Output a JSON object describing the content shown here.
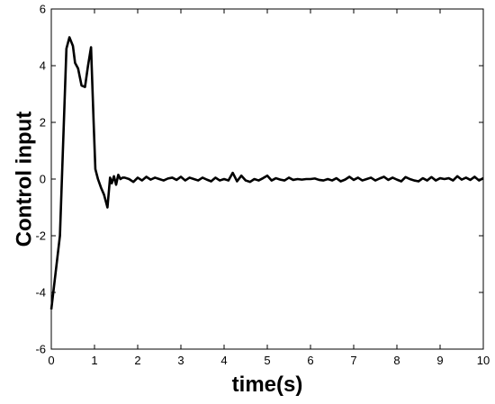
{
  "chart_data": {
    "type": "line",
    "title": "",
    "xlabel": "time(s)",
    "ylabel": "Control input",
    "xlim": [
      0,
      10
    ],
    "ylim": [
      -6,
      6
    ],
    "xticks": [
      0,
      1,
      2,
      3,
      4,
      5,
      6,
      7,
      8,
      9,
      10
    ],
    "yticks": [
      -6,
      -4,
      -2,
      0,
      2,
      4,
      6
    ],
    "xtick_labels": [
      "0",
      "1",
      "2",
      "3",
      "4",
      "5",
      "6",
      "7",
      "8",
      "9",
      "10"
    ],
    "ytick_labels": [
      "-6",
      "-4",
      "-2",
      "0",
      "2",
      "4",
      "6"
    ],
    "grid": false,
    "series": [
      {
        "color": "#000000",
        "x": [
          0,
          0.2,
          0.35,
          0.42,
          0.5,
          0.55,
          0.62,
          0.7,
          0.78,
          0.85,
          0.92,
          0.98,
          1.02,
          1.08,
          1.15,
          1.22,
          1.3,
          1.36,
          1.4,
          1.45,
          1.5,
          1.55,
          1.6,
          1.65,
          1.7,
          1.8,
          1.9,
          2.0,
          2.1,
          2.2,
          2.3,
          2.4,
          2.5,
          2.6,
          2.7,
          2.8,
          2.9,
          3.0,
          3.1,
          3.2,
          3.3,
          3.4,
          3.5,
          3.6,
          3.7,
          3.8,
          3.9,
          4.0,
          4.1,
          4.2,
          4.3,
          4.4,
          4.5,
          4.6,
          4.7,
          4.8,
          4.9,
          5.0,
          5.1,
          5.2,
          5.3,
          5.4,
          5.5,
          5.6,
          5.7,
          5.8,
          5.9,
          6.0,
          6.1,
          6.2,
          6.3,
          6.4,
          6.5,
          6.6,
          6.7,
          6.8,
          6.9,
          7.0,
          7.1,
          7.2,
          7.3,
          7.4,
          7.5,
          7.6,
          7.7,
          7.8,
          7.9,
          8.0,
          8.1,
          8.2,
          8.3,
          8.4,
          8.5,
          8.6,
          8.7,
          8.8,
          8.9,
          9.0,
          9.1,
          9.2,
          9.3,
          9.4,
          9.5,
          9.6,
          9.7,
          9.8,
          9.9,
          10.0
        ],
        "y": [
          -4.6,
          -2.0,
          4.6,
          5.0,
          4.7,
          4.1,
          3.9,
          3.3,
          3.25,
          4.0,
          4.65,
          2.0,
          0.35,
          0.0,
          -0.3,
          -0.55,
          -1.0,
          0.05,
          -0.15,
          0.1,
          -0.2,
          0.15,
          0.0,
          0.05,
          0.05,
          0.0,
          -0.1,
          0.05,
          -0.05,
          0.08,
          -0.02,
          0.05,
          0.0,
          -0.05,
          0.02,
          0.05,
          -0.03,
          0.08,
          -0.05,
          0.05,
          0.0,
          -0.05,
          0.05,
          -0.02,
          -0.08,
          0.05,
          -0.05,
          0.0,
          -0.05,
          0.22,
          -0.08,
          0.12,
          -0.05,
          -0.1,
          0.0,
          -0.05,
          0.03,
          0.12,
          -0.05,
          0.03,
          -0.02,
          -0.05,
          0.05,
          -0.03,
          0.0,
          -0.02,
          0.0,
          0.0,
          0.02,
          -0.03,
          -0.05,
          0.0,
          -0.05,
          0.03,
          -0.08,
          -0.02,
          0.08,
          -0.03,
          0.05,
          -0.05,
          0.0,
          0.05,
          -0.05,
          0.02,
          0.08,
          -0.03,
          0.05,
          -0.02,
          -0.08,
          0.07,
          0.0,
          -0.05,
          -0.08,
          0.03,
          -0.05,
          0.07,
          -0.05,
          0.03,
          0.0,
          0.03,
          -0.05,
          0.1,
          -0.02,
          0.05,
          -0.03,
          0.08,
          -0.05,
          0.03
        ]
      }
    ]
  }
}
